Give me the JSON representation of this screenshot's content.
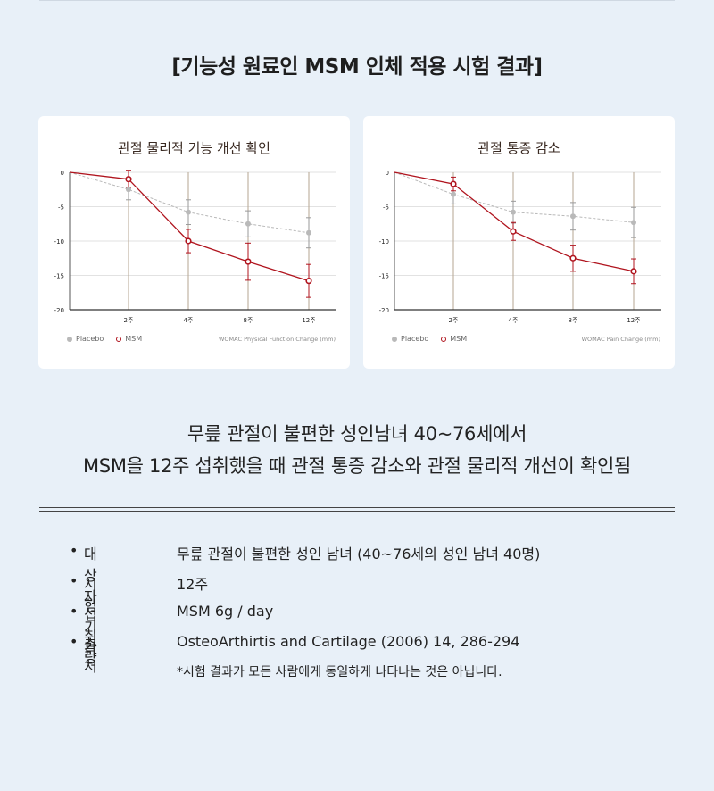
{
  "heading": "[기능성 원료인 MSM 인체 적용 시험 결과]",
  "legend": {
    "placebo": "Placebo",
    "msm": "MSM"
  },
  "chart_data": [
    {
      "type": "line",
      "title": "관절 물리적 기능 개선 확인",
      "xlabel": "WOMAC Physical Function Change (mm)",
      "categories": [
        "",
        "2주",
        "4주",
        "8주",
        "12주"
      ],
      "yticks": [
        "0",
        "-5",
        "-10",
        "-15",
        "-20"
      ],
      "ylim": [
        -20,
        0
      ],
      "grid": true,
      "legend_position": "bottom-left",
      "series": [
        {
          "name": "Placebo",
          "color": "#b9b9b9",
          "style": "dashed",
          "values": [
            0,
            -2.5,
            -5.8,
            -7.5,
            -8.8
          ],
          "err": [
            0,
            1.5,
            1.8,
            1.9,
            2.2
          ]
        },
        {
          "name": "MSM",
          "color": "#b0141e",
          "style": "solid",
          "values": [
            0,
            -1,
            -10,
            -13,
            -15.8
          ],
          "err": [
            0,
            1.3,
            1.7,
            2.7,
            2.4
          ]
        }
      ]
    },
    {
      "type": "line",
      "title": "관절 통증 감소",
      "xlabel": "WOMAC Pain Change (mm)",
      "categories": [
        "",
        "2주",
        "4주",
        "8주",
        "12주"
      ],
      "yticks": [
        "0",
        "-5",
        "-10",
        "-15",
        "-20"
      ],
      "ylim": [
        -20,
        0
      ],
      "grid": true,
      "legend_position": "bottom-left",
      "series": [
        {
          "name": "Placebo",
          "color": "#b9b9b9",
          "style": "dashed",
          "values": [
            0,
            -3.2,
            -5.8,
            -6.4,
            -7.3
          ],
          "err": [
            0,
            1.4,
            1.6,
            2.0,
            2.2
          ]
        },
        {
          "name": "MSM",
          "color": "#b0141e",
          "style": "solid",
          "values": [
            0,
            -1.7,
            -8.6,
            -12.5,
            -14.4
          ],
          "err": [
            0,
            1.0,
            1.3,
            1.9,
            1.8
          ]
        }
      ]
    }
  ],
  "summary": {
    "line1": "무릎 관절이 불편한 성인남녀 40~76세에서",
    "line2": "MSM을 12주 섭취했을 때 관절 통증 감소와 관절 물리적 개선이 확인됨"
  },
  "info": [
    {
      "label": "대상자",
      "value": "무릎 관절이 불편한 성인 남녀 (40~76세의 성인 남녀 40명)"
    },
    {
      "label": "시험기간",
      "value": "12주"
    },
    {
      "label": "섭취량",
      "value": "MSM 6g / day"
    },
    {
      "label": "출처",
      "value": "OsteoArthirtis and Cartilage (2006) 14, 286-294"
    }
  ],
  "bullet": "•",
  "note": "*시험 결과가 모든 사람에게 동일하게 나타나는 것은 아닙니다."
}
